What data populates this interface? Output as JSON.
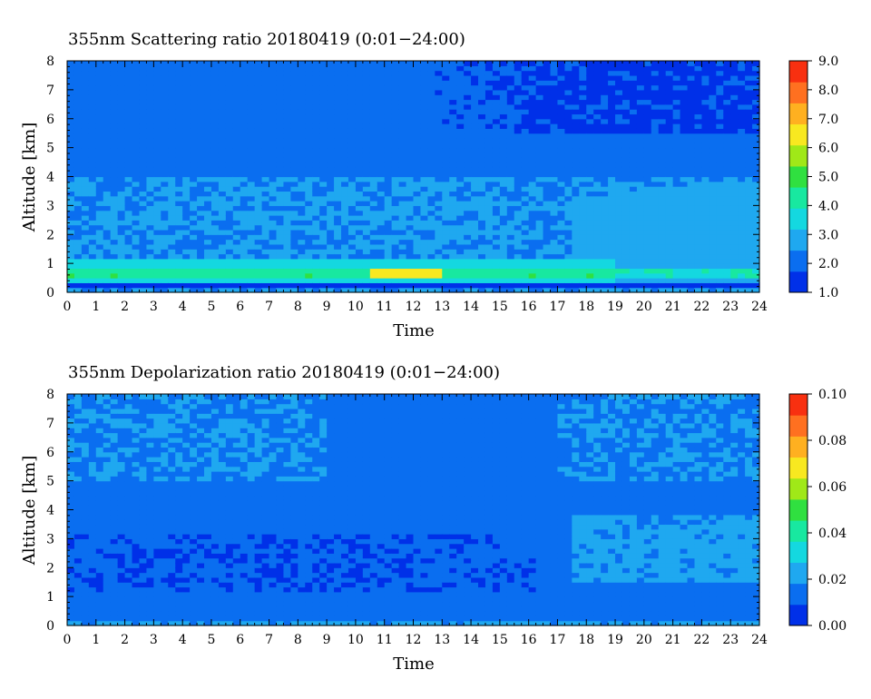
{
  "chart_data": [
    {
      "type": "heatmap",
      "title": "355nm Scattering ratio  20180419 (0:01−24:00)",
      "xlabel": "Time",
      "ylabel": "Altitude [km]",
      "xlim": [
        0,
        24
      ],
      "ylim": [
        0,
        8
      ],
      "xticks": [
        "0",
        "1",
        "2",
        "3",
        "4",
        "5",
        "6",
        "7",
        "8",
        "9",
        "10",
        "11",
        "12",
        "13",
        "14",
        "15",
        "16",
        "17",
        "18",
        "19",
        "20",
        "21",
        "22",
        "23",
        "24"
      ],
      "yticks": [
        "0",
        "1",
        "2",
        "3",
        "4",
        "5",
        "6",
        "7",
        "8"
      ],
      "colorbar": {
        "range": [
          1.0,
          9.0
        ],
        "ticks": [
          "1.0",
          "2.0",
          "3.0",
          "4.0",
          "5.0",
          "6.0",
          "7.0",
          "8.0",
          "9.0"
        ]
      },
      "colormap": [
        "#0030e8",
        "#0a6ef0",
        "#1fa8f0",
        "#14d8e0",
        "#18e8a0",
        "#30e040",
        "#a0e818",
        "#f8e820",
        "#ffb020",
        "#ff7020",
        "#f83010"
      ],
      "features": {
        "background_level": 2.0,
        "upper_layer_level": 1.6,
        "boundary_layer_altitude_km": [
          0.3,
          1.1
        ],
        "boundary_layer_level": 4.4,
        "peak_level_time_range": [
          10.5,
          13.0
        ],
        "peak_level": 6.5,
        "elevated_layer_time_range": [
          17.5,
          24.0
        ],
        "elevated_layer_altitude_km": [
          1.2,
          3.6
        ],
        "elevated_layer_level": 2.9
      }
    },
    {
      "type": "heatmap",
      "title": "355nm Depolarization ratio  20180419 (0:01−24:00)",
      "xlabel": "Time",
      "ylabel": "Altitude [km]",
      "xlim": [
        0,
        24
      ],
      "ylim": [
        0,
        8
      ],
      "xticks": [
        "0",
        "1",
        "2",
        "3",
        "4",
        "5",
        "6",
        "7",
        "8",
        "9",
        "10",
        "11",
        "12",
        "13",
        "14",
        "15",
        "16",
        "17",
        "18",
        "19",
        "20",
        "21",
        "22",
        "23",
        "24"
      ],
      "yticks": [
        "0",
        "1",
        "2",
        "3",
        "4",
        "5",
        "6",
        "7",
        "8"
      ],
      "colorbar": {
        "range": [
          0.0,
          0.1
        ],
        "ticks": [
          "0.00",
          "0.02",
          "0.04",
          "0.06",
          "0.08",
          "0.10"
        ]
      },
      "colormap": [
        "#0030e8",
        "#0a6ef0",
        "#1fa8f0",
        "#14d8e0",
        "#18e8a0",
        "#30e040",
        "#a0e818",
        "#f8e820",
        "#ffb020",
        "#ff7020",
        "#f83010"
      ],
      "features": {
        "background_level": 0.014,
        "low_level": 0.01,
        "upper_noise_level": 0.018,
        "elevated_layer_time_range": [
          17.5,
          24.0
        ],
        "elevated_layer_altitude_km": [
          1.5,
          3.8
        ],
        "elevated_layer_level": 0.02
      }
    }
  ]
}
